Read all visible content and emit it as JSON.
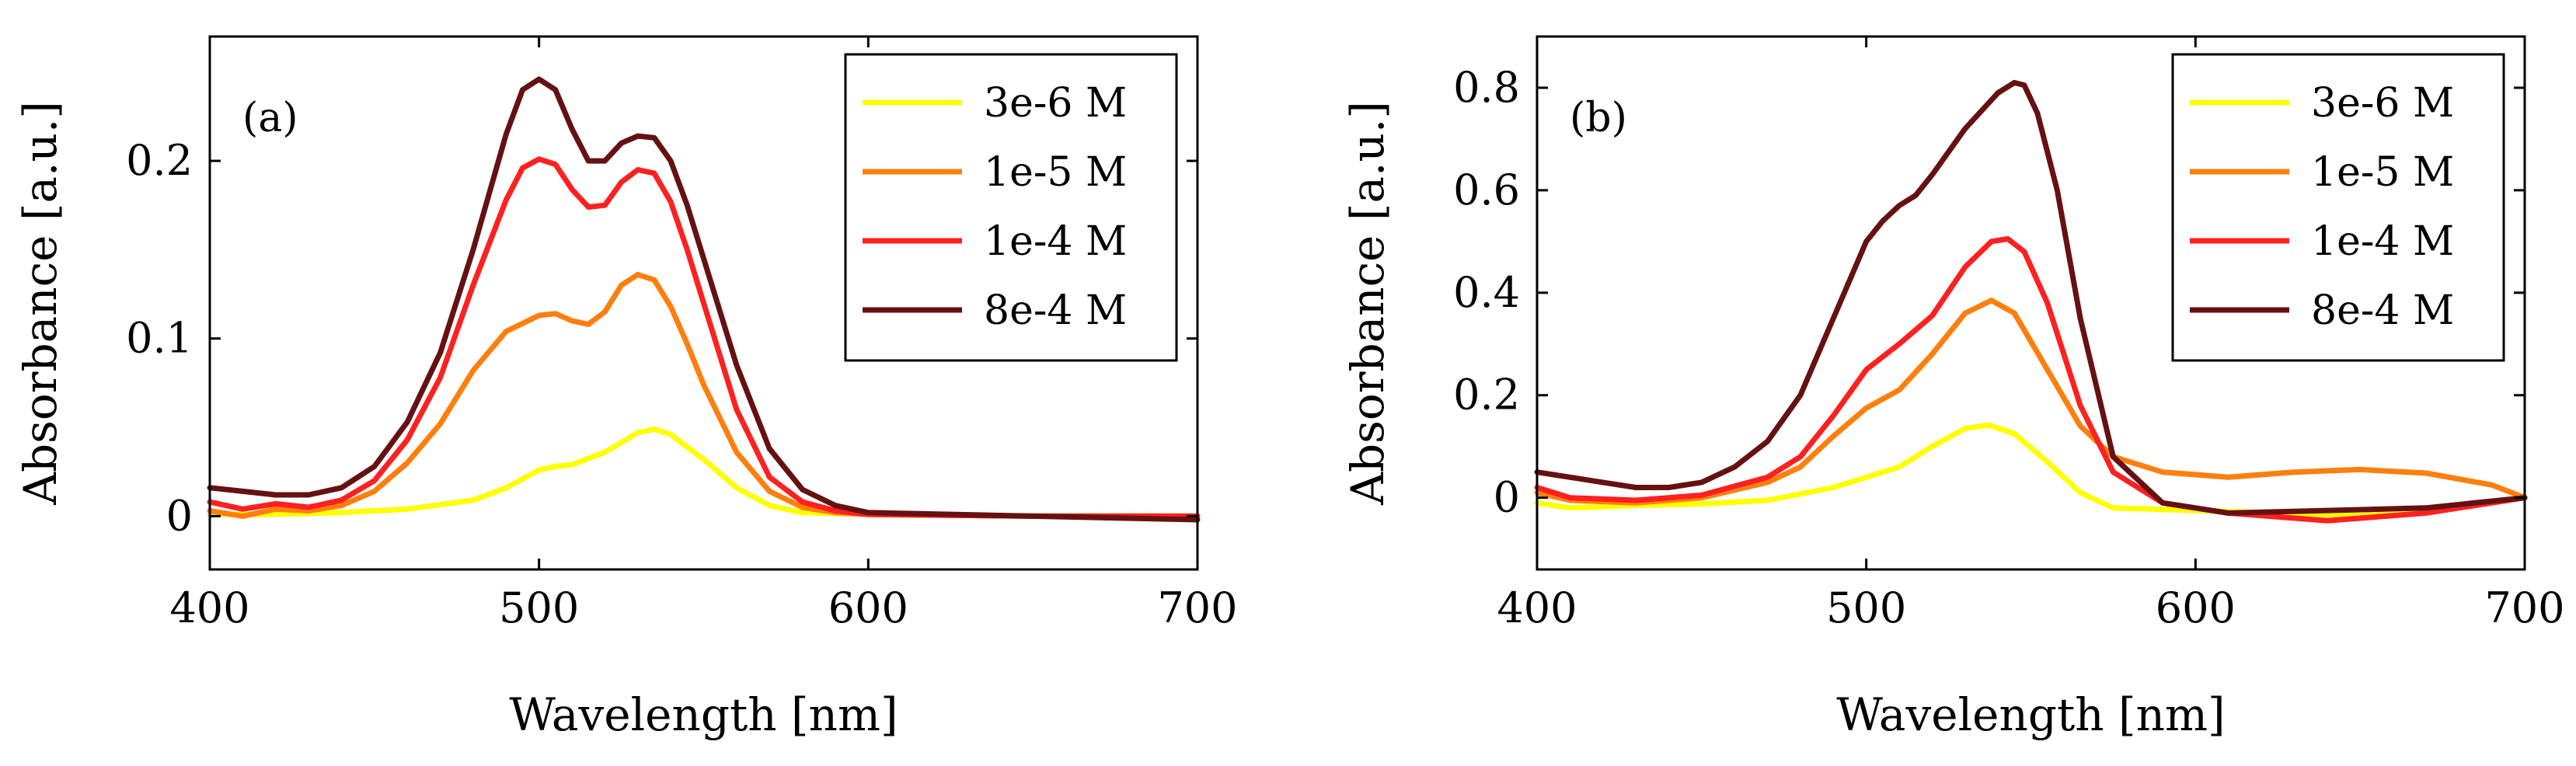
{
  "chart_data": [
    {
      "type": "line",
      "panel_label": "(a)",
      "xlabel": "Wavelength [nm]",
      "ylabel": "Absorbance [a.u.]",
      "xlim": [
        400,
        700
      ],
      "ylim": [
        -0.03,
        0.27
      ],
      "xticks": [
        400,
        500,
        600,
        700
      ],
      "xtick_labels": [
        "400",
        "500",
        "600",
        "700"
      ],
      "yticks": [
        0,
        0.1,
        0.2
      ],
      "ytick_labels": [
        "0",
        "0.1",
        "0.2"
      ],
      "grid": false,
      "legend_position": "top-right",
      "series": [
        {
          "name": "3e-6 M",
          "color": "#ffff00",
          "x": [
            400,
            420,
            440,
            460,
            480,
            490,
            500,
            505,
            510,
            520,
            530,
            535,
            540,
            550,
            560,
            570,
            580,
            600,
            650,
            700
          ],
          "y": [
            0.001,
            0.001,
            0.002,
            0.004,
            0.009,
            0.016,
            0.026,
            0.028,
            0.029,
            0.036,
            0.047,
            0.049,
            0.046,
            0.032,
            0.016,
            0.006,
            0.002,
            0.001,
            0.0,
            0.0
          ]
        },
        {
          "name": "1e-5 M",
          "color": "#ff7f0e",
          "x": [
            400,
            410,
            420,
            430,
            440,
            450,
            460,
            470,
            480,
            490,
            500,
            505,
            510,
            515,
            520,
            525,
            530,
            535,
            540,
            545,
            550,
            560,
            570,
            580,
            590,
            600,
            650,
            700
          ],
          "y": [
            0.003,
            0.0,
            0.004,
            0.003,
            0.006,
            0.014,
            0.03,
            0.052,
            0.082,
            0.104,
            0.113,
            0.114,
            0.11,
            0.108,
            0.115,
            0.13,
            0.136,
            0.133,
            0.118,
            0.097,
            0.074,
            0.036,
            0.014,
            0.005,
            0.002,
            0.001,
            0.0,
            0.0
          ]
        },
        {
          "name": "1e-4 M",
          "color": "#ff2020",
          "x": [
            400,
            410,
            420,
            430,
            440,
            450,
            460,
            470,
            480,
            490,
            495,
            500,
            505,
            510,
            515,
            520,
            525,
            530,
            535,
            540,
            545,
            550,
            560,
            570,
            580,
            590,
            600,
            650,
            700
          ],
          "y": [
            0.008,
            0.004,
            0.007,
            0.005,
            0.009,
            0.02,
            0.043,
            0.078,
            0.13,
            0.178,
            0.196,
            0.201,
            0.198,
            0.184,
            0.174,
            0.175,
            0.188,
            0.195,
            0.193,
            0.177,
            0.15,
            0.12,
            0.06,
            0.022,
            0.008,
            0.003,
            0.001,
            0.0,
            0.0
          ]
        },
        {
          "name": "8e-4 M",
          "color": "#661111",
          "x": [
            400,
            410,
            420,
            430,
            440,
            450,
            460,
            470,
            480,
            490,
            495,
            500,
            505,
            510,
            515,
            520,
            525,
            530,
            535,
            540,
            545,
            550,
            560,
            570,
            580,
            590,
            600,
            650,
            700
          ],
          "y": [
            0.016,
            0.014,
            0.012,
            0.012,
            0.016,
            0.028,
            0.053,
            0.092,
            0.15,
            0.215,
            0.24,
            0.246,
            0.24,
            0.218,
            0.2,
            0.2,
            0.21,
            0.214,
            0.213,
            0.2,
            0.175,
            0.145,
            0.085,
            0.038,
            0.015,
            0.006,
            0.002,
            0.0,
            -0.002
          ]
        }
      ]
    },
    {
      "type": "line",
      "panel_label": "(b)",
      "xlabel": "Wavelength [nm]",
      "ylabel": "Absorbance [a.u.]",
      "xlim": [
        400,
        700
      ],
      "ylim": [
        -0.14,
        0.9
      ],
      "xticks": [
        400,
        500,
        600,
        700
      ],
      "xtick_labels": [
        "400",
        "500",
        "600",
        "700"
      ],
      "yticks": [
        0,
        0.2,
        0.4,
        0.6,
        0.8
      ],
      "ytick_labels": [
        "0",
        "0.2",
        "0.4",
        "0.6",
        "0.8"
      ],
      "grid": false,
      "legend_position": "top-right",
      "series": [
        {
          "name": "3e-6 M",
          "color": "#ffff00",
          "x": [
            400,
            410,
            430,
            450,
            470,
            490,
            500,
            510,
            520,
            530,
            537,
            545,
            555,
            565,
            575,
            600,
            650,
            700
          ],
          "y": [
            -0.01,
            -0.02,
            -0.015,
            -0.012,
            -0.005,
            0.02,
            0.04,
            0.06,
            0.1,
            0.135,
            0.142,
            0.125,
            0.07,
            0.01,
            -0.02,
            -0.025,
            -0.035,
            0.0
          ]
        },
        {
          "name": "1e-5 M",
          "color": "#ff7f0e",
          "x": [
            400,
            410,
            430,
            450,
            470,
            480,
            490,
            500,
            510,
            520,
            530,
            538,
            545,
            555,
            565,
            575,
            590,
            610,
            630,
            650,
            670,
            690,
            700
          ],
          "y": [
            0.01,
            -0.005,
            -0.01,
            0.0,
            0.03,
            0.06,
            0.12,
            0.175,
            0.21,
            0.28,
            0.36,
            0.385,
            0.36,
            0.25,
            0.14,
            0.08,
            0.05,
            0.04,
            0.05,
            0.055,
            0.048,
            0.025,
            0.0
          ]
        },
        {
          "name": "1e-4 M",
          "color": "#ff2020",
          "x": [
            400,
            410,
            430,
            450,
            470,
            480,
            490,
            500,
            505,
            510,
            520,
            530,
            538,
            543,
            548,
            555,
            565,
            575,
            590,
            610,
            640,
            670,
            700
          ],
          "y": [
            0.02,
            0.0,
            -0.005,
            0.005,
            0.04,
            0.08,
            0.16,
            0.25,
            0.275,
            0.3,
            0.355,
            0.45,
            0.5,
            0.505,
            0.48,
            0.38,
            0.18,
            0.05,
            -0.01,
            -0.03,
            -0.045,
            -0.03,
            0.0
          ]
        },
        {
          "name": "8e-4 M",
          "color": "#661111",
          "x": [
            400,
            410,
            420,
            430,
            440,
            450,
            460,
            470,
            480,
            490,
            500,
            505,
            510,
            515,
            520,
            530,
            540,
            545,
            548,
            552,
            558,
            565,
            575,
            590,
            610,
            640,
            670,
            700
          ],
          "y": [
            0.05,
            0.04,
            0.03,
            0.02,
            0.02,
            0.03,
            0.06,
            0.11,
            0.2,
            0.35,
            0.5,
            0.54,
            0.57,
            0.59,
            0.63,
            0.72,
            0.79,
            0.81,
            0.805,
            0.75,
            0.6,
            0.35,
            0.08,
            -0.01,
            -0.03,
            -0.025,
            -0.02,
            0.0
          ]
        }
      ]
    }
  ]
}
